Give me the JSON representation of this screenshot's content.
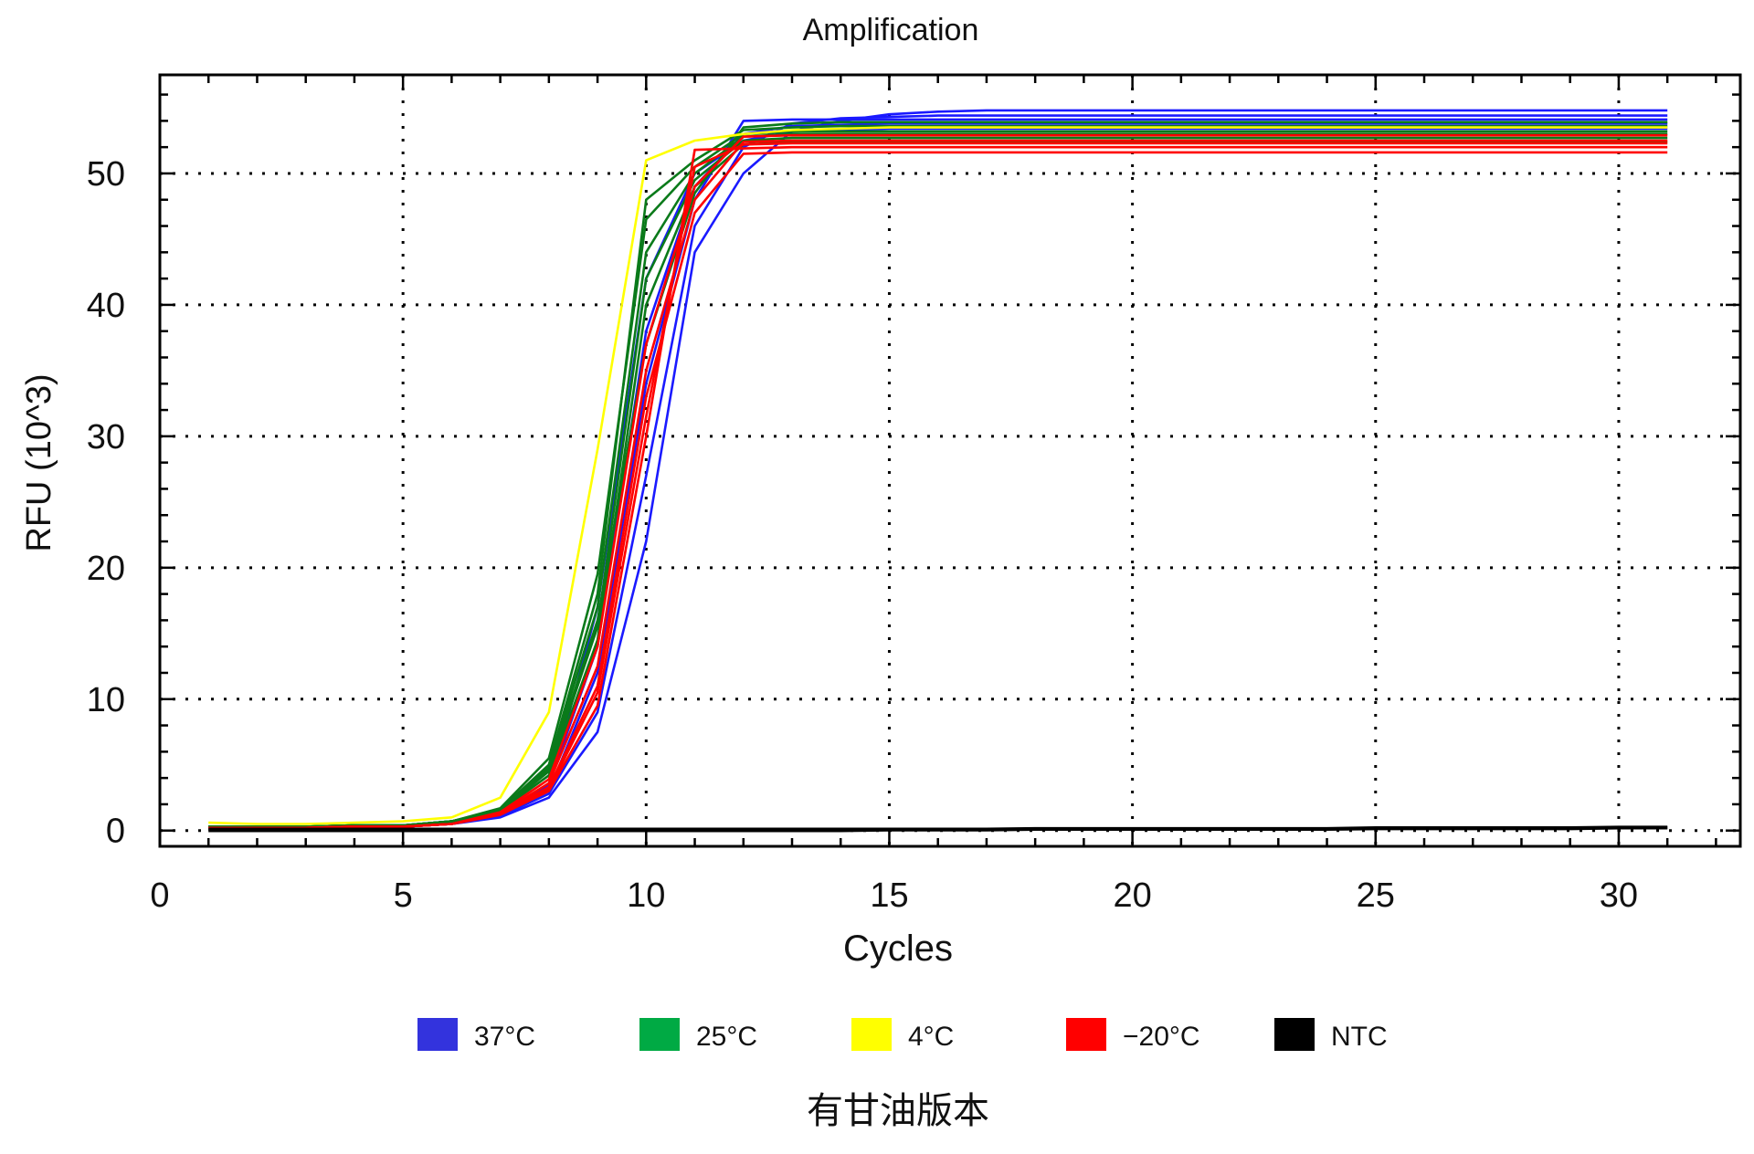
{
  "chart_data": {
    "type": "line",
    "title": "Amplification",
    "xlabel": "Cycles",
    "ylabel": "RFU (10^3)",
    "caption": "有甘油版本",
    "xlim": [
      0,
      32.5
    ],
    "ylim": [
      -1.2,
      57.5
    ],
    "xticks": [
      0,
      5,
      10,
      15,
      20,
      25,
      30
    ],
    "yticks": [
      0,
      10,
      20,
      30,
      40,
      50
    ],
    "grid": true,
    "legend_position": "bottom",
    "legend": [
      {
        "label": "37°C",
        "color": "#3333dd"
      },
      {
        "label": "25°C",
        "color": "#00aa44"
      },
      {
        "label": "4°C",
        "color": "#ffff00"
      },
      {
        "label": "−20°C",
        "color": "#ff0000"
      },
      {
        "label": "NTC",
        "color": "#000000"
      }
    ],
    "x": [
      1,
      2,
      3,
      4,
      5,
      6,
      7,
      8,
      9,
      10,
      11,
      12,
      13,
      14,
      15,
      16,
      17,
      18,
      19,
      20,
      21,
      22,
      23,
      24,
      25,
      26,
      27,
      28,
      29,
      30,
      31
    ],
    "series": [
      {
        "group": "37°C",
        "color": "#1a1aff",
        "values": [
          0.2,
          0.2,
          0.2,
          0.3,
          0.3,
          0.5,
          1.0,
          2.5,
          7.5,
          22.0,
          44.0,
          50.0,
          53.2,
          54.0,
          54.5,
          54.7,
          54.8,
          54.8,
          54.8,
          54.8,
          54.8,
          54.8,
          54.8,
          54.8,
          54.8,
          54.8,
          54.8,
          54.8,
          54.8,
          54.8,
          54.8
        ]
      },
      {
        "group": "37°C",
        "color": "#1a1aff",
        "values": [
          0.2,
          0.2,
          0.2,
          0.3,
          0.3,
          0.5,
          1.1,
          2.8,
          9.0,
          27.0,
          46.0,
          52.0,
          53.8,
          54.2,
          54.3,
          54.4,
          54.4,
          54.4,
          54.4,
          54.4,
          54.4,
          54.4,
          54.4,
          54.4,
          54.4,
          54.4,
          54.4,
          54.4,
          54.4,
          54.4,
          54.4
        ]
      },
      {
        "group": "37°C",
        "color": "#1a1aff",
        "values": [
          0.2,
          0.2,
          0.2,
          0.3,
          0.3,
          0.5,
          1.2,
          3.0,
          12.0,
          34.0,
          48.0,
          54.0,
          54.1,
          54.1,
          54.1,
          54.1,
          54.1,
          54.1,
          54.1,
          54.1,
          54.1,
          54.1,
          54.1,
          54.1,
          54.1,
          54.1,
          54.1,
          54.1,
          54.1,
          54.1,
          54.1
        ]
      },
      {
        "group": "37°C",
        "color": "#1a1aff",
        "values": [
          0.3,
          0.3,
          0.3,
          0.3,
          0.4,
          0.6,
          1.3,
          3.5,
          14.0,
          38.0,
          49.0,
          53.0,
          53.6,
          53.7,
          53.8,
          53.8,
          53.8,
          53.8,
          53.8,
          53.8,
          53.8,
          53.8,
          53.8,
          53.8,
          53.8,
          53.8,
          53.8,
          53.8,
          53.8,
          53.8,
          53.8
        ]
      },
      {
        "group": "37°C",
        "color": "#1a1aff",
        "values": [
          0.2,
          0.2,
          0.2,
          0.3,
          0.3,
          0.5,
          1.2,
          3.2,
          17.0,
          42.0,
          50.0,
          52.5,
          53.2,
          53.3,
          53.4,
          53.4,
          53.4,
          53.4,
          53.4,
          53.4,
          53.4,
          53.4,
          53.4,
          53.4,
          53.4,
          53.4,
          53.4,
          53.4,
          53.4,
          53.4,
          53.4
        ]
      },
      {
        "group": "25°C",
        "color": "#0a7a1a",
        "values": [
          0.3,
          0.3,
          0.3,
          0.4,
          0.4,
          0.7,
          1.6,
          5.0,
          18.0,
          48.0,
          51.0,
          53.3,
          53.5,
          53.6,
          53.6,
          53.6,
          53.6,
          53.6,
          53.6,
          53.6,
          53.6,
          53.6,
          53.6,
          53.6,
          53.6,
          53.6,
          53.6,
          53.6,
          53.6,
          53.6,
          53.6
        ]
      },
      {
        "group": "25°C",
        "color": "#0a7a1a",
        "values": [
          0.3,
          0.3,
          0.3,
          0.4,
          0.4,
          0.7,
          1.7,
          5.5,
          19.5,
          46.5,
          50.5,
          53.0,
          53.2,
          53.2,
          53.2,
          53.2,
          53.2,
          53.2,
          53.2,
          53.2,
          53.2,
          53.2,
          53.2,
          53.2,
          53.2,
          53.2,
          53.2,
          53.2,
          53.2,
          53.2,
          53.2
        ]
      },
      {
        "group": "25°C",
        "color": "#0a7a1a",
        "values": [
          0.3,
          0.3,
          0.3,
          0.4,
          0.4,
          0.7,
          1.6,
          4.8,
          17.0,
          44.0,
          50.0,
          52.8,
          53.0,
          53.0,
          53.0,
          53.0,
          53.0,
          53.0,
          53.0,
          53.0,
          53.0,
          53.0,
          53.0,
          53.0,
          53.0,
          53.0,
          53.0,
          53.0,
          53.0,
          53.0,
          53.0
        ]
      },
      {
        "group": "25°C",
        "color": "#0a7a1a",
        "values": [
          0.3,
          0.3,
          0.3,
          0.4,
          0.4,
          0.7,
          1.5,
          4.5,
          15.5,
          42.0,
          49.5,
          52.5,
          52.7,
          52.7,
          52.7,
          52.7,
          52.7,
          52.7,
          52.7,
          52.7,
          52.7,
          52.7,
          52.7,
          52.7,
          52.7,
          52.7,
          52.7,
          52.7,
          52.7,
          52.7,
          52.7
        ]
      },
      {
        "group": "25°C",
        "color": "#0a7a1a",
        "values": [
          0.3,
          0.3,
          0.3,
          0.4,
          0.4,
          0.7,
          1.5,
          4.2,
          14.5,
          40.0,
          49.0,
          52.2,
          52.4,
          52.4,
          52.4,
          52.4,
          52.4,
          52.4,
          52.4,
          52.4,
          52.4,
          52.4,
          52.4,
          52.4,
          52.4,
          52.4,
          52.4,
          52.4,
          52.4,
          52.4,
          52.4
        ]
      },
      {
        "group": "25°C",
        "color": "#0a7a1a",
        "values": [
          0.3,
          0.3,
          0.3,
          0.4,
          0.4,
          0.7,
          1.6,
          4.6,
          16.0,
          37.0,
          48.5,
          53.5,
          53.8,
          53.9,
          53.9,
          53.9,
          53.9,
          53.9,
          53.9,
          53.9,
          53.9,
          53.9,
          53.9,
          53.9,
          53.9,
          53.9,
          53.9,
          53.9,
          53.9,
          53.9,
          53.9
        ]
      },
      {
        "group": "4°C",
        "color": "#ffff00",
        "values": [
          0.6,
          0.5,
          0.5,
          0.6,
          0.7,
          1.0,
          2.5,
          9.0,
          29.0,
          51.0,
          52.5,
          53.0,
          53.3,
          53.4,
          53.5,
          53.5,
          53.5,
          53.5,
          53.5,
          53.5,
          53.5,
          53.5,
          53.5,
          53.5,
          53.5,
          53.5,
          53.5,
          53.5,
          53.5,
          53.5,
          53.5
        ]
      },
      {
        "group": "−20°C",
        "color": "#ff0000",
        "values": [
          0.2,
          0.2,
          0.2,
          0.3,
          0.3,
          0.5,
          1.2,
          3.0,
          9.5,
          30.0,
          51.8,
          51.9,
          52.0,
          52.0,
          52.0,
          52.0,
          52.0,
          52.0,
          52.0,
          52.0,
          52.0,
          52.0,
          52.0,
          52.0,
          52.0,
          52.0,
          52.0,
          52.0,
          52.0,
          52.0,
          52.0
        ]
      },
      {
        "group": "−20°C",
        "color": "#ff0000",
        "values": [
          0.2,
          0.2,
          0.2,
          0.3,
          0.3,
          0.5,
          1.3,
          3.3,
          11.0,
          33.0,
          47.0,
          51.5,
          51.6,
          51.6,
          51.6,
          51.6,
          51.6,
          51.6,
          51.6,
          51.6,
          51.6,
          51.6,
          51.6,
          51.6,
          51.6,
          51.6,
          51.6,
          51.6,
          51.6,
          51.6,
          51.6
        ]
      },
      {
        "group": "−20°C",
        "color": "#ff0000",
        "values": [
          0.2,
          0.2,
          0.2,
          0.3,
          0.3,
          0.5,
          1.3,
          3.6,
          12.5,
          35.0,
          48.0,
          52.4,
          52.5,
          52.5,
          52.5,
          52.5,
          52.5,
          52.5,
          52.5,
          52.5,
          52.5,
          52.5,
          52.5,
          52.5,
          52.5,
          52.5,
          52.5,
          52.5,
          52.5,
          52.5,
          52.5
        ]
      },
      {
        "group": "−20°C",
        "color": "#ff0000",
        "values": [
          0.2,
          0.2,
          0.2,
          0.3,
          0.3,
          0.5,
          1.4,
          3.9,
          14.0,
          37.0,
          49.0,
          52.8,
          52.9,
          52.9,
          52.9,
          52.9,
          52.9,
          52.9,
          52.9,
          52.9,
          52.9,
          52.9,
          52.9,
          52.9,
          52.9,
          52.9,
          52.9,
          52.9,
          52.9,
          52.9,
          52.9
        ]
      },
      {
        "group": "−20°C",
        "color": "#ff0000",
        "values": [
          0.2,
          0.2,
          0.2,
          0.3,
          0.3,
          0.5,
          1.2,
          3.1,
          10.5,
          31.5,
          50.5,
          52.2,
          52.3,
          52.3,
          52.3,
          52.3,
          52.3,
          52.3,
          52.3,
          52.3,
          52.3,
          52.3,
          52.3,
          52.3,
          52.3,
          52.3,
          52.3,
          52.3,
          52.3,
          52.3,
          52.3
        ]
      },
      {
        "group": "NTC",
        "color": "#000000",
        "values": [
          0.0,
          0.0,
          0.0,
          0.0,
          0.0,
          0.0,
          0.0,
          0.0,
          0.0,
          0.0,
          0.0,
          0.0,
          0.0,
          0.0,
          0.05,
          0.05,
          0.05,
          0.1,
          0.1,
          0.1,
          0.1,
          0.1,
          0.1,
          0.1,
          0.15,
          0.15,
          0.15,
          0.15,
          0.15,
          0.2,
          0.2
        ]
      },
      {
        "group": "NTC",
        "color": "#000000",
        "values": [
          0.1,
          0.1,
          0.1,
          0.1,
          0.1,
          0.1,
          0.1,
          0.1,
          0.1,
          0.1,
          0.1,
          0.1,
          0.1,
          0.1,
          0.1,
          0.1,
          0.1,
          0.15,
          0.15,
          0.15,
          0.15,
          0.15,
          0.15,
          0.15,
          0.2,
          0.2,
          0.2,
          0.2,
          0.2,
          0.25,
          0.25
        ]
      }
    ]
  }
}
